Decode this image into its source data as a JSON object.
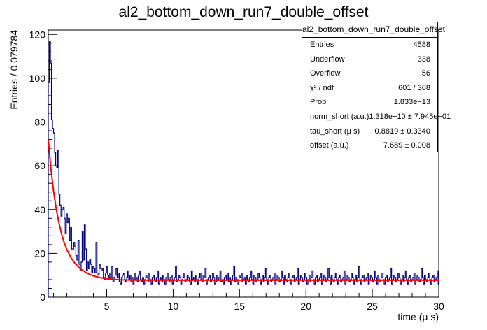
{
  "title": "al2_bottom_down_run7_double_offset",
  "stats_box": {
    "title": "al2_bottom_down_run7_double_offset",
    "rows": [
      {
        "label": "Entries",
        "value": "4588"
      },
      {
        "label": "Underflow",
        "value": "338"
      },
      {
        "label": "Overflow",
        "value": "56"
      },
      {
        "label": "χ² / ndf",
        "value": "601 / 368"
      },
      {
        "label": "Prob",
        "value": "1.833e−13"
      },
      {
        "label": "norm_short (a.u.)",
        "value": "1.318e−10 ± 7.945e−01"
      },
      {
        "label": "tau_short (μ s)",
        "value": "0.8819 ± 0.3340"
      },
      {
        "label": "offset (a.u.)",
        "value": "7.689 ± 0.008"
      }
    ]
  },
  "colors": {
    "histogram": "#000080",
    "fit": "#ff0000",
    "axes": "#000000"
  },
  "chart_data": {
    "type": "line",
    "title": "al2_bottom_down_run7_double_offset",
    "xlabel": "time (μ s)",
    "ylabel": "Entries / 0.079784",
    "xlim": [
      0.6,
      30
    ],
    "ylim": [
      0,
      122
    ],
    "xticks": [
      5,
      10,
      15,
      20,
      25,
      30
    ],
    "yticks": [
      0,
      20,
      40,
      60,
      80,
      100,
      120
    ],
    "bin_width": 0.079784,
    "histogram": {
      "x_start": 0.6,
      "counts": [
        98,
        117,
        107,
        81,
        77,
        75,
        66,
        60,
        59,
        67,
        47,
        42,
        37,
        40,
        41,
        36,
        29,
        38,
        34,
        36,
        26,
        32,
        22,
        22,
        25,
        23,
        19,
        17,
        26,
        15,
        12,
        16,
        30,
        17,
        33,
        22,
        12,
        16,
        13,
        17,
        15,
        11,
        14,
        13,
        11,
        25,
        11,
        10,
        15,
        13,
        12,
        13,
        9,
        8,
        11,
        14,
        10,
        9,
        11,
        8,
        14,
        7,
        9,
        10,
        13,
        9,
        11,
        7,
        6,
        9,
        10,
        11,
        8,
        7,
        9,
        12,
        8,
        10,
        7,
        9,
        6,
        11,
        8,
        9,
        7,
        10,
        12,
        8,
        7,
        9,
        6,
        8,
        10,
        9,
        7,
        11,
        8,
        6,
        9,
        10,
        8,
        7,
        9,
        12,
        6,
        8,
        9,
        7,
        10,
        8,
        6,
        9,
        11,
        8,
        7,
        9,
        10,
        6,
        8,
        9,
        14,
        7,
        8,
        10,
        9,
        6,
        8,
        9,
        11,
        7,
        8,
        10,
        9,
        7,
        6,
        12,
        8,
        9,
        7,
        10,
        8,
        6,
        9,
        11,
        8,
        7,
        10,
        9,
        13,
        6,
        8,
        9,
        10,
        7,
        8,
        11,
        9,
        6,
        7,
        10,
        8,
        9,
        12,
        7,
        8,
        6,
        9,
        10,
        8,
        11,
        7,
        9,
        6,
        8,
        10,
        14,
        7,
        9,
        8,
        6,
        10,
        9,
        11,
        7,
        8,
        9,
        6,
        10,
        8,
        7,
        9,
        12,
        8,
        6,
        10,
        9,
        7,
        8,
        11,
        9,
        6,
        8,
        10,
        7,
        9,
        13,
        8,
        6,
        9,
        10,
        7,
        8,
        9,
        11,
        6,
        8,
        10,
        9,
        7,
        8,
        12,
        9,
        6,
        10,
        8,
        7,
        9,
        11,
        8,
        6,
        9,
        10,
        7,
        8,
        9,
        13,
        6,
        8,
        10,
        9,
        7,
        8,
        11,
        9,
        6,
        8,
        10,
        7,
        9,
        12,
        8,
        6,
        9,
        10,
        7,
        8,
        9,
        11,
        6,
        8,
        10,
        9,
        7,
        8,
        13,
        9,
        6,
        10,
        8,
        7,
        9,
        11,
        8,
        6,
        9,
        10,
        7,
        8,
        9,
        12,
        6,
        8,
        10,
        9,
        7,
        8,
        11,
        9,
        6,
        8,
        10,
        7,
        9,
        14,
        8,
        6,
        9,
        10,
        7,
        8,
        9,
        11,
        6,
        8,
        10,
        9,
        7,
        8,
        12,
        9,
        6,
        10,
        8,
        7,
        9,
        11,
        8,
        6,
        9,
        10,
        7,
        8,
        9,
        13,
        6,
        8,
        10,
        9,
        7,
        8,
        11,
        9,
        6,
        8,
        10,
        7,
        9,
        12,
        8,
        6,
        9,
        10,
        7,
        8,
        9,
        11,
        6,
        8,
        10,
        9,
        7,
        8,
        13,
        9,
        6,
        10,
        8,
        7,
        9,
        11,
        8,
        6,
        9,
        10,
        7,
        8,
        9,
        12,
        6,
        8,
        10,
        9,
        7,
        8,
        11,
        9,
        6,
        8,
        10,
        7,
        9,
        14,
        8,
        6,
        9,
        10,
        7,
        8,
        9,
        11,
        6
      ]
    },
    "fit": {
      "function": "norm_short*exp(-t/tau_short)+offset",
      "tau_short": 0.8819,
      "offset": 7.689,
      "points": [
        [
          0.6,
          72.0
        ],
        [
          0.8,
          58.5
        ],
        [
          1.0,
          48.3
        ],
        [
          1.2,
          40.3
        ],
        [
          1.4,
          34.0
        ],
        [
          1.6,
          28.9
        ],
        [
          1.8,
          24.9
        ],
        [
          2.0,
          21.7
        ],
        [
          2.3,
          18.1
        ],
        [
          2.6,
          15.5
        ],
        [
          3.0,
          13.0
        ],
        [
          3.5,
          11.0
        ],
        [
          4.0,
          9.7
        ],
        [
          4.5,
          8.9
        ],
        [
          5.0,
          8.4
        ],
        [
          6.0,
          7.9
        ],
        [
          7.0,
          7.75
        ],
        [
          8.0,
          7.71
        ],
        [
          10.0,
          7.69
        ],
        [
          15.0,
          7.689
        ],
        [
          20.0,
          7.689
        ],
        [
          25.0,
          7.689
        ],
        [
          30.0,
          7.689
        ]
      ]
    }
  }
}
